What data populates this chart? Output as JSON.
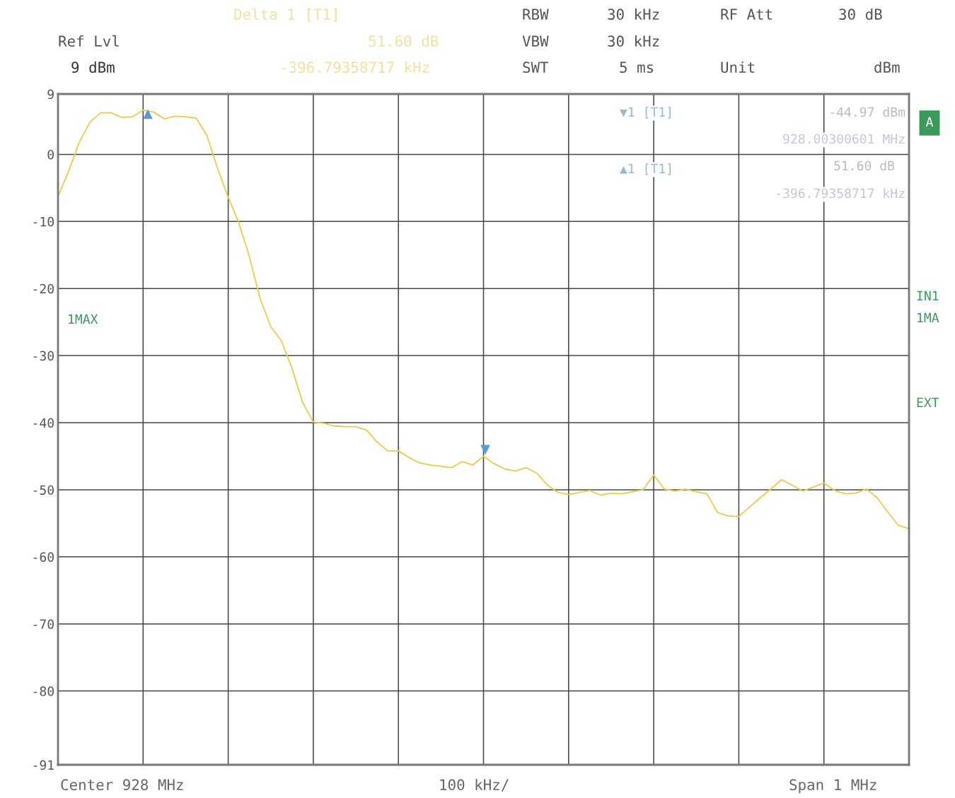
{
  "chart_data": {
    "type": "line",
    "categories": [
      null,
      null,
      null,
      null,
      null,
      null,
      null,
      null,
      null,
      null,
      null,
      null,
      null,
      null,
      null,
      null,
      null,
      null,
      null,
      null,
      null,
      null,
      null,
      null,
      null,
      null,
      null,
      null,
      null,
      null,
      null,
      null,
      null,
      null,
      null,
      null,
      null,
      null,
      null,
      null,
      null,
      null,
      null,
      null,
      null,
      null,
      null,
      null,
      null,
      null,
      null,
      null,
      null,
      null,
      null,
      null,
      null,
      null,
      null,
      null,
      null,
      null,
      null,
      null,
      null,
      null,
      null,
      null,
      null,
      null,
      null,
      null,
      null,
      null,
      null,
      null,
      null,
      null,
      null,
      null,
      null
    ],
    "series": [
      {
        "color": "#f0c850",
        "values": [
          -6.3,
          -2.5,
          1.8,
          4.8,
          6.2,
          6.2,
          5.5,
          5.6,
          6.6,
          6.3,
          5.3,
          5.7,
          5.6,
          5.4,
          2.8,
          -2.1,
          -6.4,
          -10.2,
          -15.3,
          -21.5,
          -25.7,
          -27.8,
          -31.9,
          -37.0,
          -39.9,
          -40.1,
          -40.5,
          -40.6,
          -40.6,
          -41.1,
          -42.9,
          -44.2,
          -44.2,
          -45.2,
          -46.0,
          -46.3,
          -46.5,
          -46.7,
          -45.8,
          -46.3,
          -45.0,
          -46.1,
          -46.9,
          -47.2,
          -46.7,
          -47.5,
          -49.3,
          -50.4,
          -50.7,
          -50.4,
          -50.1,
          -50.8,
          -50.5,
          -50.6,
          -50.3,
          -50.0,
          -47.8,
          -49.9,
          -50.2,
          -49.9,
          -50.3,
          -50.6,
          -53.4,
          -53.9,
          -54.0,
          -52.6,
          -51.2,
          -49.9,
          -48.5,
          -49.3,
          -50.2,
          -49.6,
          -49.0,
          -50.1,
          -50.6,
          -50.5,
          -49.9,
          -51.2,
          -53.3,
          -55.3,
          -55.8
        ]
      }
    ],
    "ylim": [
      -91,
      9
    ],
    "yticks": [
      -91,
      -80,
      -70,
      -60,
      -50,
      -40,
      -30,
      -20,
      -10,
      0,
      9
    ],
    "grid": true,
    "line_style": "solid",
    "annotations": [
      "Ref Lvl",
      "9 dBm",
      "Delta 1 [T1]",
      "51.60 dB",
      "-396.79358717 kHz",
      "RBW",
      "30 kHz",
      "VBW",
      "30 kHz",
      "SWT",
      "5 ms",
      "RF Att",
      "30 dB",
      "Unit",
      "dBm",
      "▼1 [T1]",
      "-44.97 dBm",
      "928.00300601 MHz",
      "▲1 [T1]",
      "51.60 dB",
      "-396.79358717 kHz",
      "1MAX",
      "A",
      "IN1",
      "1MA",
      "EXT",
      "Center 928 MHz",
      "100 kHz/",
      "Span 1 MHz",
      "▲",
      "▼"
    ]
  }
}
